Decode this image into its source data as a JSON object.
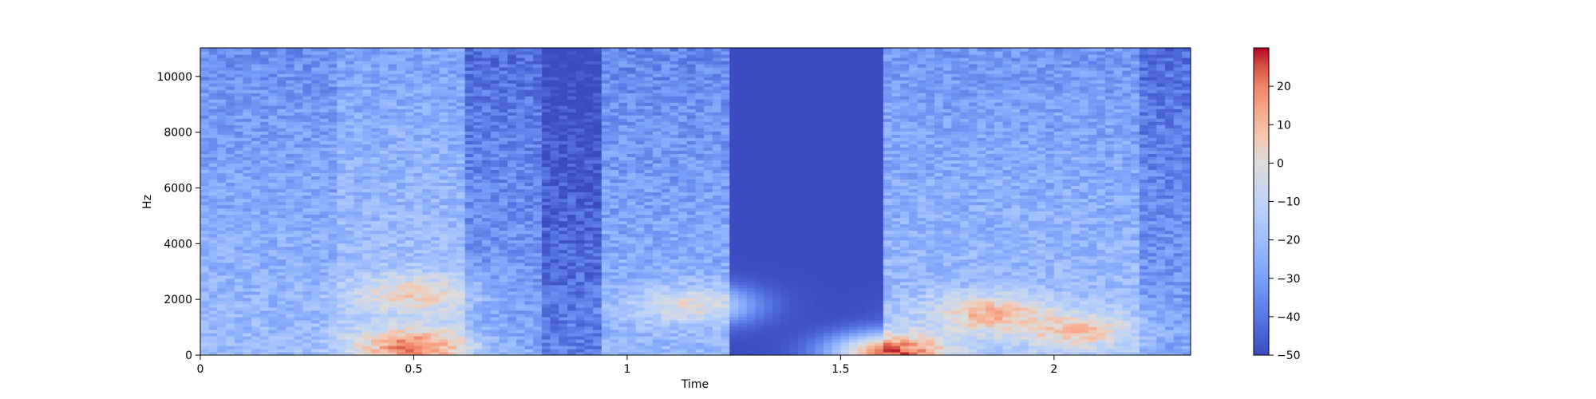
{
  "chart_data": {
    "type": "heatmap",
    "title": "",
    "xlabel": "Time",
    "ylabel": "Hz",
    "xlim": [
      0,
      2.32
    ],
    "ylim": [
      0,
      11025
    ],
    "x_ticks": [
      0,
      0.5,
      1,
      1.5,
      2
    ],
    "x_tick_labels": [
      "0",
      "0.5",
      "1",
      "1.5",
      "2"
    ],
    "y_ticks": [
      0,
      2000,
      4000,
      6000,
      8000,
      10000
    ],
    "y_tick_labels": [
      "0",
      "2000",
      "4000",
      "6000",
      "8000",
      "10000"
    ],
    "colormap": "coolwarm",
    "colorbar": {
      "vmin": -50,
      "vmax": 30,
      "ticks": [
        -50,
        -40,
        -30,
        -20,
        -10,
        0,
        10,
        20
      ],
      "tick_labels": [
        "−50",
        "−40",
        "−30",
        "−20",
        "−10",
        "0",
        "10",
        "20"
      ]
    },
    "segments": [
      {
        "t_start": 0.0,
        "t_end": 0.32,
        "level_db": -20
      },
      {
        "t_start": 0.32,
        "t_end": 0.62,
        "level_db": -15
      },
      {
        "t_start": 0.62,
        "t_end": 0.8,
        "level_db": -28
      },
      {
        "t_start": 0.8,
        "t_end": 0.95,
        "level_db": -38
      },
      {
        "t_start": 0.95,
        "t_end": 1.23,
        "level_db": -22
      },
      {
        "t_start": 1.23,
        "t_end": 1.6,
        "level_db": -50
      },
      {
        "t_start": 1.6,
        "t_end": 2.2,
        "level_db": -18
      },
      {
        "t_start": 2.2,
        "t_end": 2.32,
        "level_db": -28
      }
    ],
    "hotspots": [
      {
        "t": 0.5,
        "hz": 300,
        "level_db": 20
      },
      {
        "t": 0.5,
        "hz": 2200,
        "level_db": 5
      },
      {
        "t": 1.15,
        "hz": 1800,
        "level_db": 0
      },
      {
        "t": 1.62,
        "hz": 100,
        "level_db": 25
      },
      {
        "t": 1.85,
        "hz": 1500,
        "level_db": 12
      },
      {
        "t": 2.05,
        "hz": 900,
        "level_db": 8
      }
    ]
  }
}
